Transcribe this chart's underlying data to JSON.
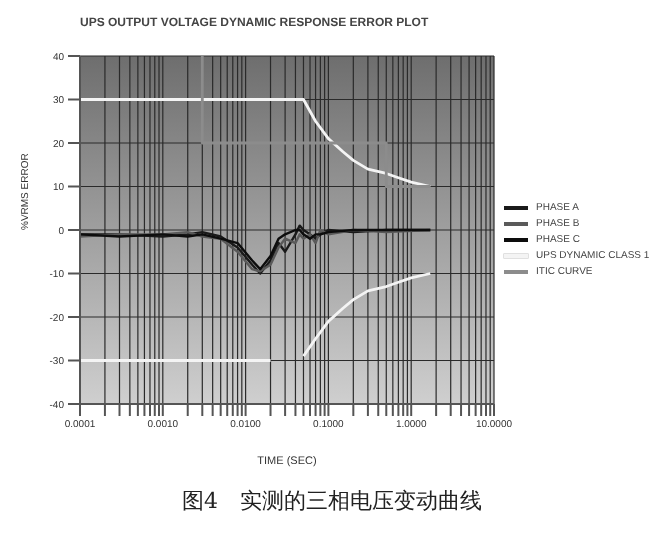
{
  "chart_data": {
    "type": "line",
    "title": "UPS OUTPUT VOLTAGE DYNAMIC RESPONSE ERROR PLOT",
    "xlabel": "TIME (SEC)",
    "ylabel": "%VRMS ERROR",
    "log": "x",
    "grid": true,
    "legend": "right",
    "marker": "none",
    "line_style": "solid",
    "xlim": [
      0.0001,
      10
    ],
    "ylim": [
      -40,
      40
    ],
    "yticks": [
      -40,
      -30,
      -20,
      -10,
      0,
      10,
      20,
      30,
      40
    ],
    "xticks": [
      {
        "value": 0.0001,
        "label": "0.0001"
      },
      {
        "value": 0.0002,
        "label": null
      },
      {
        "value": 0.0003,
        "label": null
      },
      {
        "value": 0.0004,
        "label": null
      },
      {
        "value": 0.0005,
        "label": null
      },
      {
        "value": 0.0006,
        "label": null
      },
      {
        "value": 0.0007,
        "label": null
      },
      {
        "value": 0.0008,
        "label": null
      },
      {
        "value": 0.0009,
        "label": null
      },
      {
        "value": 0.001,
        "label": "0.0010"
      },
      {
        "value": 0.002,
        "label": null
      },
      {
        "value": 0.003,
        "label": null
      },
      {
        "value": 0.004,
        "label": null
      },
      {
        "value": 0.005,
        "label": null
      },
      {
        "value": 0.006,
        "label": null
      },
      {
        "value": 0.007,
        "label": null
      },
      {
        "value": 0.008,
        "label": null
      },
      {
        "value": 0.009,
        "label": null
      },
      {
        "value": 0.01,
        "label": "0.0100"
      },
      {
        "value": 0.02,
        "label": null
      },
      {
        "value": 0.03,
        "label": null
      },
      {
        "value": 0.04,
        "label": null
      },
      {
        "value": 0.05,
        "label": null
      },
      {
        "value": 0.06,
        "label": null
      },
      {
        "value": 0.07,
        "label": null
      },
      {
        "value": 0.08,
        "label": null
      },
      {
        "value": 0.09,
        "label": null
      },
      {
        "value": 0.1,
        "label": "0.1000"
      },
      {
        "value": 0.2,
        "label": null
      },
      {
        "value": 0.3,
        "label": null
      },
      {
        "value": 0.4,
        "label": null
      },
      {
        "value": 0.5,
        "label": null
      },
      {
        "value": 0.6,
        "label": null
      },
      {
        "value": 0.7,
        "label": null
      },
      {
        "value": 0.8,
        "label": null
      },
      {
        "value": 0.9,
        "label": null
      },
      {
        "value": 1,
        "label": "1.0000"
      },
      {
        "value": 2,
        "label": null
      },
      {
        "value": 3,
        "label": null
      },
      {
        "value": 4,
        "label": null
      },
      {
        "value": 5,
        "label": null
      },
      {
        "value": 6,
        "label": null
      },
      {
        "value": 7,
        "label": null
      },
      {
        "value": 8,
        "label": null
      },
      {
        "value": 9,
        "label": null
      },
      {
        "value": 10,
        "label": "10.0000"
      }
    ],
    "series": [
      {
        "name": "PHASE A",
        "color": "#1a1a1a",
        "x": [
          0.0001,
          0.0003,
          0.001,
          0.002,
          0.003,
          0.005,
          0.008,
          0.012,
          0.015,
          0.02,
          0.025,
          0.03,
          0.04,
          0.045,
          0.05,
          0.06,
          0.07,
          0.08,
          0.1,
          0.2,
          0.5,
          1.7
        ],
        "values": [
          -1,
          -1,
          -1.5,
          -1,
          -0.5,
          -1.5,
          -4,
          -8,
          -10,
          -7,
          -3,
          -5,
          -1,
          1,
          0,
          -1,
          -2,
          -1,
          0,
          -0.5,
          0,
          0
        ]
      },
      {
        "name": "PHASE B",
        "color": "#5a5a5a",
        "x": [
          0.0001,
          0.0003,
          0.001,
          0.002,
          0.003,
          0.005,
          0.008,
          0.012,
          0.015,
          0.02,
          0.025,
          0.03,
          0.04,
          0.045,
          0.05,
          0.06,
          0.07,
          0.08,
          0.1,
          0.2,
          0.5,
          1.7
        ],
        "values": [
          -1.5,
          -1,
          -1,
          -0.5,
          -1.5,
          -2,
          -5,
          -9,
          -9.5,
          -8,
          -4,
          -2,
          -3,
          -1,
          -2,
          -1,
          -3,
          0,
          -1,
          0,
          -0.5,
          0
        ]
      },
      {
        "name": "PHASE C",
        "color": "#0d0d0d",
        "x": [
          0.0001,
          0.0003,
          0.001,
          0.002,
          0.003,
          0.005,
          0.008,
          0.012,
          0.015,
          0.02,
          0.025,
          0.03,
          0.04,
          0.045,
          0.05,
          0.06,
          0.07,
          0.08,
          0.1,
          0.2,
          0.5,
          1.7
        ],
        "values": [
          -1,
          -1.5,
          -1,
          -1.5,
          -1,
          -2,
          -3,
          -7,
          -9,
          -6,
          -2,
          -1,
          0,
          0,
          -1,
          -2,
          -1,
          -1,
          -0.5,
          0,
          0,
          0
        ]
      },
      {
        "name": "UPS DYNAMIC CLASS 1",
        "color": "#f4f4f4",
        "x": [
          0.0001,
          0.05,
          0.07,
          0.1,
          0.15,
          0.2,
          0.3,
          0.5,
          0.7,
          1,
          1.7
        ],
        "values": [
          30,
          30,
          25,
          21,
          18,
          16,
          14,
          13,
          12,
          11,
          10
        ]
      },
      {
        "color": "#f4f4f4",
        "x": [
          0.0001,
          0.02
        ],
        "values": [
          -30,
          -30
        ]
      },
      {
        "color": "#f4f4f4",
        "x": [
          0.05,
          0.07,
          0.1,
          0.15,
          0.2,
          0.3,
          0.5,
          0.7,
          1,
          1.7
        ],
        "values": [
          -29,
          -25,
          -21,
          -18,
          -16,
          -14,
          -13,
          -12,
          -11,
          -10
        ]
      },
      {
        "name": "ITIC CURVE",
        "color": "#8c8c8c",
        "x": [
          0.003,
          0.003,
          0.5,
          0.5,
          1.7
        ],
        "values": [
          40,
          20,
          20,
          10,
          10
        ]
      }
    ],
    "annotations": [
      "图4　实测的三相电压变动曲线"
    ]
  }
}
